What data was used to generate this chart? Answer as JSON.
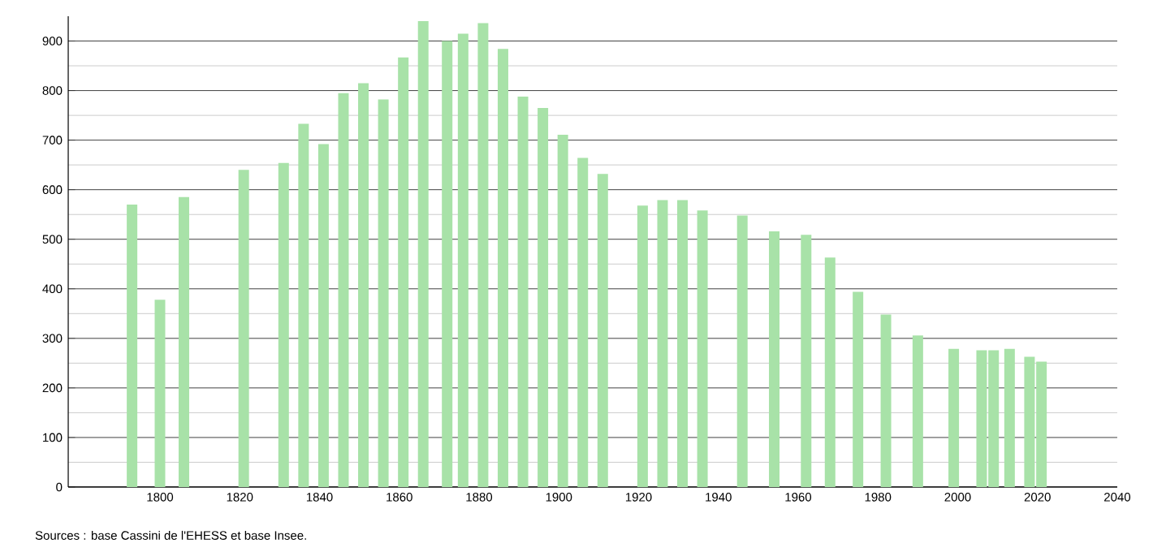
{
  "chart_data": {
    "type": "bar",
    "color": "#a8e2a8",
    "x": [
      1793,
      1800,
      1806,
      1821,
      1831,
      1836,
      1841,
      1846,
      1851,
      1856,
      1861,
      1866,
      1872,
      1876,
      1881,
      1886,
      1891,
      1896,
      1901,
      1906,
      1911,
      1921,
      1926,
      1931,
      1936,
      1946,
      1954,
      1962,
      1968,
      1975,
      1982,
      1990,
      1999,
      2006,
      2009,
      2013,
      2018,
      2021
    ],
    "values": [
      570,
      378,
      585,
      640,
      654,
      733,
      692,
      795,
      815,
      782,
      867,
      940,
      900,
      915,
      936,
      884,
      788,
      765,
      711,
      664,
      632,
      568,
      579,
      579,
      558,
      548,
      516,
      509,
      463,
      394,
      348,
      306,
      279,
      276,
      276,
      279,
      263,
      253
    ],
    "xlim": [
      1777,
      2040
    ],
    "ylim": [
      0,
      950
    ],
    "xticks": [
      1800,
      1820,
      1840,
      1860,
      1880,
      1900,
      1920,
      1940,
      1960,
      1980,
      2000,
      2020,
      2040
    ],
    "yticks": [
      0,
      100,
      200,
      300,
      400,
      500,
      600,
      700,
      800,
      900
    ],
    "grid": "y",
    "annotations": [
      "Sources : base Cassini de l'EHESS et base Insee."
    ]
  }
}
